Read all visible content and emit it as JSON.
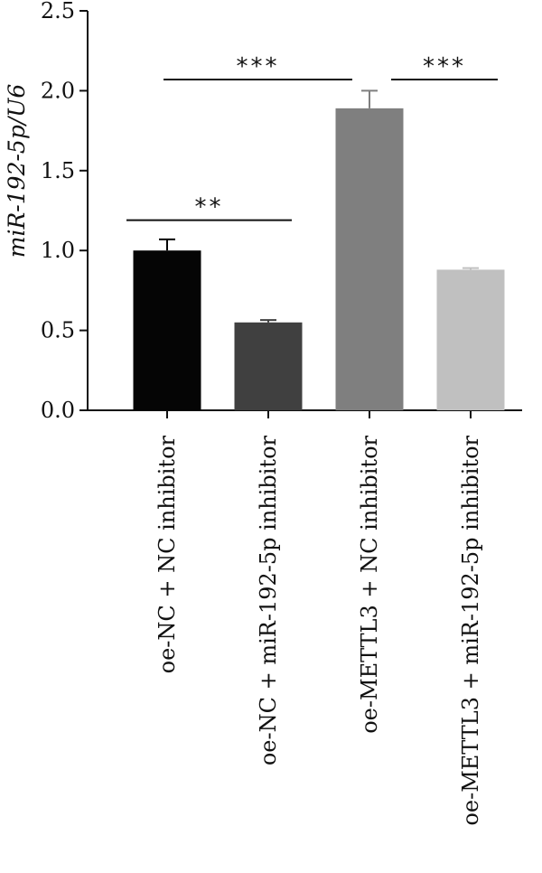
{
  "chart_data": {
    "type": "bar",
    "title": "",
    "xlabel": "",
    "ylabel": "miR-192-5p/U6",
    "ylim": [
      0,
      2.5
    ],
    "yticks": [
      "0.0",
      "0.5",
      "1.0",
      "1.5",
      "2.0",
      "2.5"
    ],
    "categories": [
      "oe-NC + NC inhibitor",
      "oe-NC + miR-192-5p inhibitor",
      "oe-METTL3 + NC inhibitor",
      "oe-METTL3 + miR-192-5p inhibitor"
    ],
    "values": [
      1.0,
      0.55,
      1.89,
      0.88
    ],
    "errors": [
      0.07,
      0.015,
      0.11,
      0.01
    ],
    "colors": [
      "#050505",
      "#404040",
      "#7f7f7f",
      "#c0c0c0"
    ],
    "significance": [
      {
        "from": 0,
        "to": 1,
        "label": "**",
        "y": 1.19
      },
      {
        "from": 0,
        "to": 2,
        "label": "***",
        "y": 2.07
      },
      {
        "from": 2,
        "to": 3,
        "label": "***",
        "y": 2.07
      }
    ],
    "grid": false,
    "legend": "none"
  }
}
